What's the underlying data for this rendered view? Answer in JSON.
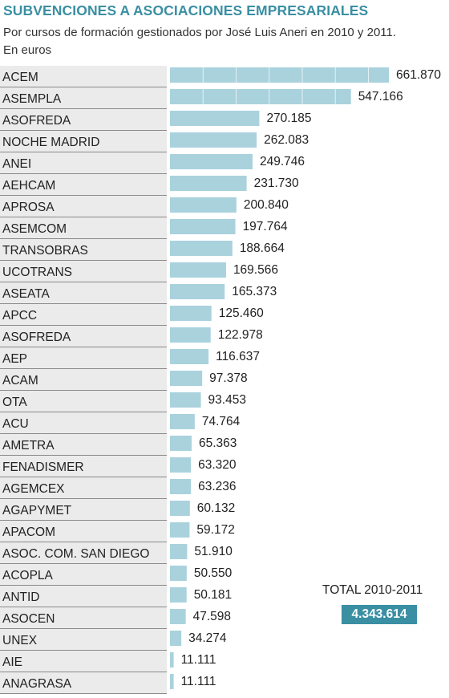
{
  "title": "SUBVENCIONES A ASOCIACIONES EMPRESARIALES",
  "subtitle_line1": "Por cursos de formación gestionados por José Luis Aneri en 2010 y 2011.",
  "subtitle_line2": "En euros",
  "total": {
    "label": "TOTAL 2010-2011",
    "value": "4.343.614"
  },
  "colors": {
    "bar": "#a9d2dd",
    "accent": "#3a8fa3",
    "row_shade": "#ebebeb",
    "row_line": "#8a8a8a"
  },
  "chart_data": {
    "type": "bar",
    "orientation": "horizontal",
    "title": "SUBVENCIONES A ASOCIACIONES EMPRESARIALES",
    "unit": "euros",
    "xlim": [
      0,
      661870
    ],
    "grid": false,
    "categories": [
      "ACEM",
      "ASEMPLA",
      "ASOFREDA",
      "NOCHE MADRID",
      "ANEI",
      "AEHCAM",
      "APROSA",
      "ASEMCOM",
      "TRANSOBRAS",
      "UCOTRANS",
      "ASEATA",
      "APCC",
      "ASOFREDA",
      "AEP",
      "ACAM",
      "OTA",
      "ACU",
      "AMETRA",
      "FENADISMER",
      "AGEMCEX",
      "AGAPYMET",
      "APACOM",
      "ASOC. COM. SAN DIEGO",
      "ACOPLA",
      "ANTID",
      "ASOCEN",
      "UNEX",
      "AIE",
      "ANAGRASA"
    ],
    "values": [
      661870,
      547166,
      270185,
      262083,
      249746,
      231730,
      200840,
      197764,
      188664,
      169566,
      165373,
      125460,
      122978,
      116637,
      97378,
      93453,
      74764,
      65363,
      63320,
      63236,
      60132,
      59172,
      51910,
      50550,
      50181,
      47598,
      34274,
      11111,
      11111
    ],
    "labels": [
      "661.870",
      "547.166",
      "270.185",
      "262.083",
      "249.746",
      "231.730",
      "200.840",
      "197.764",
      "188.664",
      "169.566",
      "165.373",
      "125.460",
      "122.978",
      "116.637",
      "97.378",
      "93.453",
      "74.764",
      "65.363",
      "63.320",
      "63.236",
      "60.132",
      "59.172",
      "51.910",
      "50.550",
      "50.181",
      "47.598",
      "34.274",
      "11.111",
      "11.111"
    ]
  }
}
